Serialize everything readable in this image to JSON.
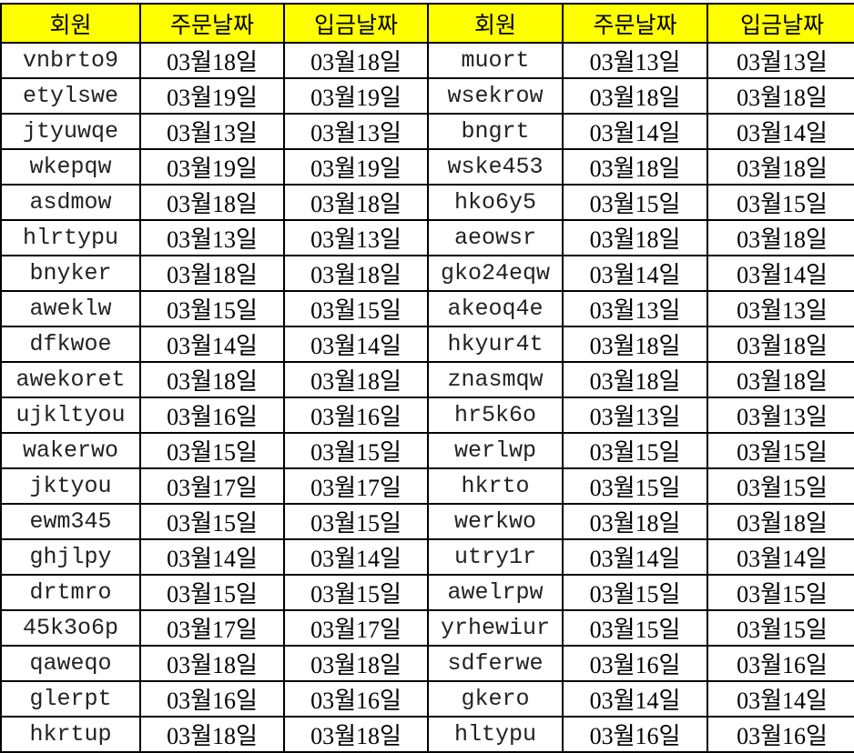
{
  "headers": [
    "회원",
    "주문날짜",
    "입금날짜",
    "회원",
    "주문날짜",
    "입금날짜"
  ],
  "header_color": "#ffff00",
  "rows": [
    [
      "vnbrto9",
      "03월18일",
      "03월18일",
      "muort",
      "03월13일",
      "03월13일"
    ],
    [
      "etylswe",
      "03월19일",
      "03월19일",
      "wsekrow",
      "03월18일",
      "03월18일"
    ],
    [
      "jtyuwqe",
      "03월13일",
      "03월13일",
      "bngrt",
      "03월14일",
      "03월14일"
    ],
    [
      "wkepqw",
      "03월19일",
      "03월19일",
      "wske453",
      "03월18일",
      "03월18일"
    ],
    [
      "asdmow",
      "03월18일",
      "03월18일",
      "hko6y5",
      "03월15일",
      "03월15일"
    ],
    [
      "hlrtypu",
      "03월13일",
      "03월13일",
      "aeowsr",
      "03월18일",
      "03월18일"
    ],
    [
      "bnyker",
      "03월18일",
      "03월18일",
      "gko24eqw",
      "03월14일",
      "03월14일"
    ],
    [
      "aweklw",
      "03월15일",
      "03월15일",
      "akeoq4e",
      "03월13일",
      "03월13일"
    ],
    [
      "dfkwoe",
      "03월14일",
      "03월14일",
      "hkyur4t",
      "03월18일",
      "03월18일"
    ],
    [
      "awekoret",
      "03월18일",
      "03월18일",
      "znasmqw",
      "03월18일",
      "03월18일"
    ],
    [
      "ujkltyou",
      "03월16일",
      "03월16일",
      "hr5k6o",
      "03월13일",
      "03월13일"
    ],
    [
      "wakerwo",
      "03월15일",
      "03월15일",
      "werlwp",
      "03월15일",
      "03월15일"
    ],
    [
      "jktyou",
      "03월17일",
      "03월17일",
      "hkrto",
      "03월15일",
      "03월15일"
    ],
    [
      "ewm345",
      "03월15일",
      "03월15일",
      "werkwo",
      "03월18일",
      "03월18일"
    ],
    [
      "ghjlpy",
      "03월14일",
      "03월14일",
      "utry1r",
      "03월14일",
      "03월14일"
    ],
    [
      "drtmro",
      "03월15일",
      "03월15일",
      "awelrpw",
      "03월15일",
      "03월15일"
    ],
    [
      "45k3o6p",
      "03월17일",
      "03월17일",
      "yrhewiur",
      "03월15일",
      "03월15일"
    ],
    [
      "qaweqo",
      "03월18일",
      "03월18일",
      "sdferwe",
      "03월16일",
      "03월16일"
    ],
    [
      "glerpt",
      "03월16일",
      "03월16일",
      "gkero",
      "03월14일",
      "03월14일"
    ],
    [
      "hkrtup",
      "03월18일",
      "03월18일",
      "hltypu",
      "03월16일",
      "03월16일"
    ]
  ]
}
